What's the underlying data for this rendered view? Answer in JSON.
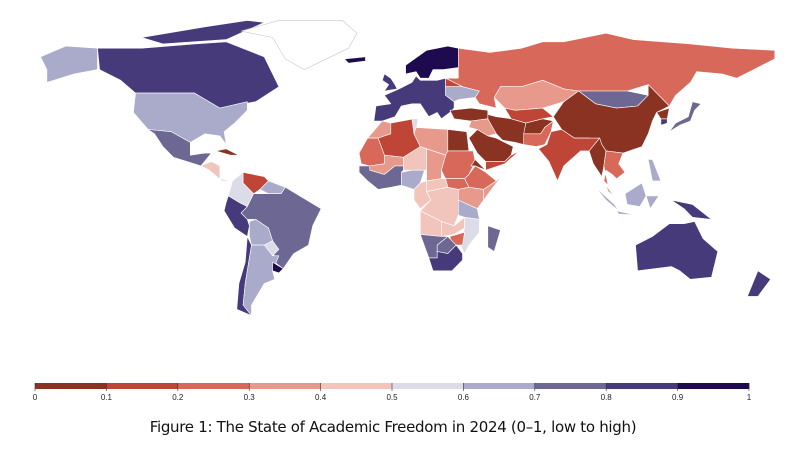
{
  "caption": "Figure 1: The State of Academic Freedom in 2024 (0–1, low to high)",
  "chart_data": {
    "type": "choropleth",
    "title": "Figure 1: The State of Academic Freedom in 2024 (0–1, low to high)",
    "scale": {
      "range": [
        0,
        1
      ],
      "breaks": [
        0,
        0.1,
        0.2,
        0.3,
        0.4,
        0.5,
        0.6,
        0.7,
        0.8,
        0.9,
        1
      ],
      "tick_labels": [
        "0",
        "0.1",
        "0.2",
        "0.3",
        "0.4",
        "0.5",
        "0.6",
        "0.7",
        "0.8",
        "0.9",
        "1"
      ],
      "colors": [
        "#8a3323",
        "#bf4536",
        "#d8685a",
        "#e7998c",
        "#f1c5bc",
        "#dcdce9",
        "#aaaaca",
        "#6d6893",
        "#463a7b",
        "#1e0b4f"
      ],
      "no_data_color": "#ffffff",
      "legend_placement": "bottom"
    },
    "regions": [
      {
        "id": "canada",
        "value": 0.85
      },
      {
        "id": "canada-arctic",
        "value": 0.85
      },
      {
        "id": "alaska",
        "value": 0.62
      },
      {
        "id": "usa",
        "value": 0.62
      },
      {
        "id": "mexico",
        "value": 0.72
      },
      {
        "id": "central-america",
        "value": 0.45
      },
      {
        "id": "cuba",
        "value": 0.05
      },
      {
        "id": "greenland",
        "value": null
      },
      {
        "id": "colombia",
        "value": 0.55
      },
      {
        "id": "venezuela",
        "value": 0.15
      },
      {
        "id": "guianas",
        "value": 0.62
      },
      {
        "id": "brazil",
        "value": 0.75
      },
      {
        "id": "peru-ecuador",
        "value": 0.85
      },
      {
        "id": "bolivia",
        "value": 0.62
      },
      {
        "id": "paraguay",
        "value": 0.55
      },
      {
        "id": "chile",
        "value": 0.85
      },
      {
        "id": "argentina",
        "value": 0.62
      },
      {
        "id": "uruguay",
        "value": 0.95
      },
      {
        "id": "europe",
        "value": 0.85
      },
      {
        "id": "uk",
        "value": 0.85
      },
      {
        "id": "scandinavia",
        "value": 0.93
      },
      {
        "id": "iceland",
        "value": 0.9
      },
      {
        "id": "belarus",
        "value": 0.1
      },
      {
        "id": "ukraine",
        "value": 0.62
      },
      {
        "id": "russia",
        "value": 0.25
      },
      {
        "id": "kazakhstan",
        "value": 0.38
      },
      {
        "id": "mongolia",
        "value": 0.72
      },
      {
        "id": "china",
        "value": 0.05
      },
      {
        "id": "south-korea",
        "value": 0.85
      },
      {
        "id": "north-korea",
        "value": 0.02
      },
      {
        "id": "japan",
        "value": 0.75
      },
      {
        "id": "central-asia",
        "value": 0.15
      },
      {
        "id": "iran",
        "value": 0.08
      },
      {
        "id": "afghanistan",
        "value": 0.05
      },
      {
        "id": "pakistan",
        "value": 0.25
      },
      {
        "id": "india",
        "value": 0.15
      },
      {
        "id": "turkey",
        "value": 0.05
      },
      {
        "id": "syria-iraq",
        "value": 0.3
      },
      {
        "id": "saudi-arabia",
        "value": 0.05
      },
      {
        "id": "yemen-oman",
        "value": 0.15
      },
      {
        "id": "myanmar",
        "value": 0.05
      },
      {
        "id": "indochina",
        "value": 0.25
      },
      {
        "id": "malaysia",
        "value": 0.3
      },
      {
        "id": "sumatra",
        "value": 0.65
      },
      {
        "id": "borneo",
        "value": 0.65
      },
      {
        "id": "java",
        "value": 0.65
      },
      {
        "id": "sulawesi",
        "value": 0.65
      },
      {
        "id": "new-guinea",
        "value": 0.85
      },
      {
        "id": "philippines",
        "value": 0.65
      },
      {
        "id": "australia",
        "value": 0.85
      },
      {
        "id": "new-zealand",
        "value": 0.85
      },
      {
        "id": "morocco",
        "value": 0.35
      },
      {
        "id": "algeria",
        "value": 0.15
      },
      {
        "id": "tunisia",
        "value": 0.5
      },
      {
        "id": "libya",
        "value": 0.3
      },
      {
        "id": "egypt",
        "value": 0.05
      },
      {
        "id": "sudan",
        "value": 0.25
      },
      {
        "id": "mauritania",
        "value": 0.25
      },
      {
        "id": "mali",
        "value": 0.35
      },
      {
        "id": "niger",
        "value": 0.4
      },
      {
        "id": "chad",
        "value": 0.35
      },
      {
        "id": "west-africa",
        "value": 0.75
      },
      {
        "id": "nigeria",
        "value": 0.62
      },
      {
        "id": "eritrea",
        "value": 0.0
      },
      {
        "id": "ethiopia",
        "value": 0.2
      },
      {
        "id": "somalia",
        "value": 0.35
      },
      {
        "id": "south-sudan",
        "value": 0.25
      },
      {
        "id": "car",
        "value": 0.42
      },
      {
        "id": "cameroon-congo",
        "value": 0.45
      },
      {
        "id": "drc",
        "value": 0.42
      },
      {
        "id": "kenya-uganda",
        "value": 0.35
      },
      {
        "id": "tanzania",
        "value": 0.62
      },
      {
        "id": "angola",
        "value": 0.45
      },
      {
        "id": "zambia",
        "value": 0.45
      },
      {
        "id": "mozambique",
        "value": 0.55
      },
      {
        "id": "zimbabwe",
        "value": 0.2
      },
      {
        "id": "namibia",
        "value": 0.72
      },
      {
        "id": "botswana",
        "value": 0.75
      },
      {
        "id": "south-africa",
        "value": 0.85
      },
      {
        "id": "madagascar",
        "value": 0.72
      }
    ]
  }
}
